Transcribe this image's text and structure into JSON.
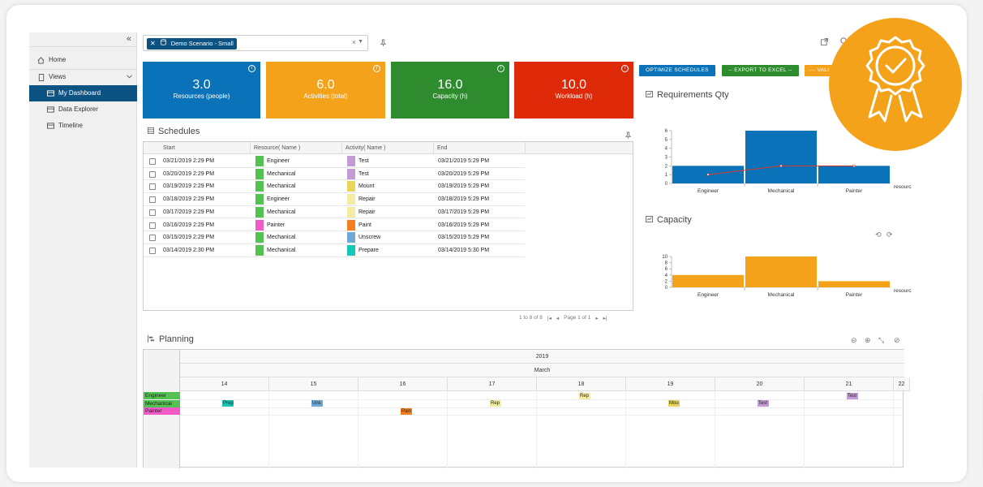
{
  "sidebar": {
    "collapse_icon": "«",
    "items": [
      {
        "label": "Home",
        "icon": "home-icon"
      },
      {
        "label": "Views",
        "icon": "file-icon"
      },
      {
        "label": "My Dashboard",
        "icon": "dashboard-icon"
      },
      {
        "label": "Data Explorer",
        "icon": "table-icon"
      },
      {
        "label": "Timeline",
        "icon": "timeline-icon"
      }
    ]
  },
  "topbar": {
    "scenario_chip": "Demo Scenario - Small",
    "clear_glyph": "×"
  },
  "kpis": [
    {
      "value": "3.0",
      "label": "Resources (people)",
      "color": "#0a72b8"
    },
    {
      "value": "6.0",
      "label": "Activities (total)",
      "color": "#f5a21b"
    },
    {
      "value": "16.0",
      "label": "Capacity (h)",
      "color": "#2e8b2e"
    },
    {
      "value": "10.0",
      "label": "Workload (h)",
      "color": "#df2a0a"
    }
  ],
  "actions": {
    "optimize": "OPTIMIZE SCHEDULES",
    "export": "-- EXPORT TO EXCEL --",
    "validate": "--- VALI"
  },
  "schedules": {
    "title": "Schedules",
    "headers": [
      "Start",
      "Resource( Name )",
      "Activity( Name )",
      "End"
    ],
    "rows": [
      {
        "start": "03/21/2019 2:29 PM",
        "resource": "Engineer",
        "res_color": "#53c252",
        "activity": "Test",
        "act_color": "#c49bd4",
        "end": "03/21/2019 5:29 PM"
      },
      {
        "start": "03/20/2019 2:29 PM",
        "resource": "Mechanical",
        "res_color": "#53c252",
        "activity": "Test",
        "act_color": "#c49bd4",
        "end": "03/20/2019 5:29 PM"
      },
      {
        "start": "03/19/2019 2:29 PM",
        "resource": "Mechanical",
        "res_color": "#53c252",
        "activity": "Mount",
        "act_color": "#e8d55a",
        "end": "03/19/2019 5:29 PM"
      },
      {
        "start": "03/18/2019 2:29 PM",
        "resource": "Engineer",
        "res_color": "#53c252",
        "activity": "Repair",
        "act_color": "#f3eca3",
        "end": "03/18/2019 5:29 PM"
      },
      {
        "start": "03/17/2019 2:29 PM",
        "resource": "Mechanical",
        "res_color": "#53c252",
        "activity": "Repair",
        "act_color": "#f3eca3",
        "end": "03/17/2019 5:29 PM"
      },
      {
        "start": "03/16/2019 2:29 PM",
        "resource": "Painter",
        "res_color": "#f25ac8",
        "activity": "Paint",
        "act_color": "#f47f20",
        "end": "03/16/2019 5:29 PM"
      },
      {
        "start": "03/15/2019 2:29 PM",
        "resource": "Mechanical",
        "res_color": "#53c252",
        "activity": "Unscrew",
        "act_color": "#6ea8d6",
        "end": "03/15/2019 5:29 PM"
      },
      {
        "start": "03/14/2019 2:30 PM",
        "resource": "Mechanical",
        "res_color": "#53c252",
        "activity": "Prepare",
        "act_color": "#18c6b8",
        "end": "03/14/2019 5:30 PM"
      }
    ],
    "pager": {
      "range": "1 to 8 of 8",
      "page": "Page 1 of 1"
    }
  },
  "chart_data": [
    {
      "type": "bar",
      "title": "Requirements Qty",
      "categories": [
        "Engineer",
        "Mechanical",
        "Painter"
      ],
      "series": [
        {
          "values": [
            2,
            6,
            2
          ],
          "color": "#0a72b8"
        },
        {
          "values": [
            1,
            2,
            2
          ],
          "color": "#d93a2a",
          "render": "line"
        }
      ],
      "xlabel": "resourc",
      "ylim": [
        0,
        6
      ],
      "yticks": [
        "0",
        "1",
        "2",
        "3",
        "4",
        "5",
        "6"
      ]
    },
    {
      "type": "bar",
      "title": "Capacity",
      "categories": [
        "Engineer",
        "Mechanical",
        "Painter"
      ],
      "series": [
        {
          "values": [
            4,
            10,
            2
          ],
          "color": "#f5a21b"
        }
      ],
      "xlabel": "resourc",
      "ylim": [
        0,
        10
      ],
      "yticks": [
        "0",
        "2",
        "4",
        "6",
        "8",
        "10"
      ]
    }
  ],
  "planning": {
    "title": "Planning",
    "year": "2019",
    "month": "March",
    "days": [
      "14",
      "15",
      "16",
      "17",
      "18",
      "19",
      "20",
      "21",
      "22"
    ],
    "resources": [
      {
        "name": "Engineer",
        "color": "#53c252"
      },
      {
        "name": "Mechanical",
        "color": "#53c252"
      },
      {
        "name": "Painter",
        "color": "#f25ac8"
      }
    ],
    "bars": [
      {
        "label": "Prep",
        "row": 1,
        "day": 14,
        "color": "#18c6b8"
      },
      {
        "label": "Uns",
        "row": 1,
        "day": 15,
        "color": "#6ea8d6"
      },
      {
        "label": "Pain",
        "row": 2,
        "day": 16,
        "color": "#f47f20"
      },
      {
        "label": "Rep",
        "row": 1,
        "day": 17,
        "color": "#f3eca3"
      },
      {
        "label": "Rep",
        "row": 0,
        "day": 18,
        "color": "#f3eca3"
      },
      {
        "label": "Mou",
        "row": 1,
        "day": 19,
        "color": "#e8d55a"
      },
      {
        "label": "Test",
        "row": 1,
        "day": 20,
        "color": "#c49bd4"
      },
      {
        "label": "Test",
        "row": 0,
        "day": 21,
        "color": "#c49bd4"
      }
    ]
  },
  "badge": {
    "color": "#f5a21b",
    "icon": "award-ribbon-check-icon"
  }
}
